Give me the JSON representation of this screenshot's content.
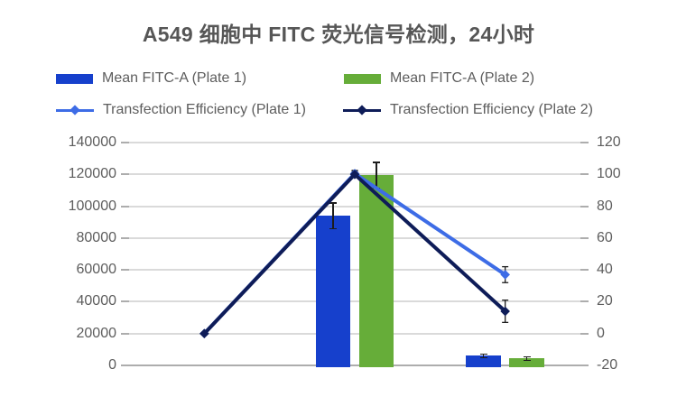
{
  "chart": {
    "title": "A549 细胞中 FITC 荧光信号检测，24小时"
  },
  "chart_data": {
    "type": "combo_bar_line",
    "title": "A549 细胞中 FITC 荧光信号检测，24小时",
    "categories": [
      "",
      "",
      ""
    ],
    "x_axis": {
      "tick_labels_visible": false
    },
    "left_axis": {
      "min": 0,
      "max": 140000,
      "step": 20000,
      "tick_labels": [
        "140000",
        "120000",
        "100000",
        "80000",
        "60000",
        "40000",
        "20000",
        "0"
      ]
    },
    "right_axis": {
      "min": -20,
      "max": 120,
      "step": 20,
      "tick_labels": [
        "120",
        "100",
        "80",
        "60",
        "40",
        "20",
        "0",
        "-20"
      ]
    },
    "grid": true,
    "legend_position": "top",
    "series": [
      {
        "name": "Mean FITC-A (Plate 1)",
        "type": "bar",
        "axis": "left",
        "color": "#1640cc",
        "values": [
          0,
          94000,
          6000
        ],
        "errors": [
          0,
          8000,
          1200
        ]
      },
      {
        "name": "Mean FITC-A (Plate 2)",
        "type": "bar",
        "axis": "left",
        "color": "#66ad39",
        "values": [
          0,
          119500,
          4300
        ],
        "errors": [
          0,
          8000,
          1200
        ]
      },
      {
        "name": "Transfection Efficiency (Plate 1)",
        "type": "line",
        "axis": "right",
        "color": "#3d6ce6",
        "values": [
          0,
          100.5,
          37
        ],
        "errors": [
          0,
          2,
          5
        ]
      },
      {
        "name": "Transfection Efficiency (Plate 2)",
        "type": "line",
        "axis": "right",
        "color": "#0e1c58",
        "values": [
          0,
          100,
          14
        ],
        "errors": [
          0,
          2,
          7
        ]
      }
    ],
    "colors": {
      "background": "#ffffff",
      "grid": "#dadada",
      "axis_line": "#adadad",
      "text": "#5d5d5d",
      "title_text": "#565656",
      "error_bar": "#1c1c1c"
    }
  }
}
